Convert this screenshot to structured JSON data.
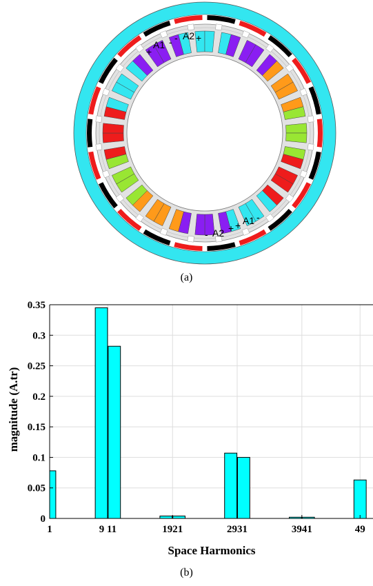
{
  "figure_a": {
    "caption": "(a)",
    "labels": {
      "top_a1": "A1",
      "top_a2": "A2",
      "bottom_a1": "A1",
      "bottom_a2": "A2",
      "plus": "+",
      "minus": "-"
    },
    "colors": {
      "outer_ring": "#33e6f0",
      "magnet_red": "#ee1c1c",
      "magnet_black": "#000000",
      "stator": "#e2e2e2",
      "phase_cyan": "#33e6f0",
      "phase_red": "#ee1c1c",
      "phase_green": "#99e633",
      "phase_purple": "#8a1ef2",
      "phase_orange": "#ff9a1a"
    }
  },
  "figure_b": {
    "caption": "(b)",
    "chart_data": {
      "type": "bar",
      "xlabel": "Space Harmonics",
      "ylabel": "magnitude (A.tr)",
      "ylim": [
        0,
        0.35
      ],
      "yticks": [
        "0",
        "0.05",
        "0.1",
        "0.15",
        "0.2",
        "0.25",
        "0.3",
        "0.35"
      ],
      "ytick_values": [
        0,
        0.05,
        0.1,
        0.15,
        0.2,
        0.25,
        0.3,
        0.35
      ],
      "xticks": [
        {
          "label": "1",
          "at": 1
        },
        {
          "label": "9 11",
          "at": 10
        },
        {
          "label": "1921",
          "at": 20
        },
        {
          "label": "2931",
          "at": 30
        },
        {
          "label": "3941",
          "at": 40
        },
        {
          "label": "49",
          "at": 49
        }
      ],
      "xlim": [
        1,
        51
      ],
      "grid": true,
      "bar_color": "#00ffff",
      "bars": [
        {
          "x": 1,
          "value": 0.078
        },
        {
          "x": 9,
          "value": 0.345
        },
        {
          "x": 11,
          "value": 0.282
        },
        {
          "x": 19,
          "value": 0.004
        },
        {
          "x": 21,
          "value": 0.004
        },
        {
          "x": 29,
          "value": 0.107
        },
        {
          "x": 31,
          "value": 0.1
        },
        {
          "x": 39,
          "value": 0.002
        },
        {
          "x": 41,
          "value": 0.002
        },
        {
          "x": 49,
          "value": 0.063
        }
      ]
    }
  }
}
